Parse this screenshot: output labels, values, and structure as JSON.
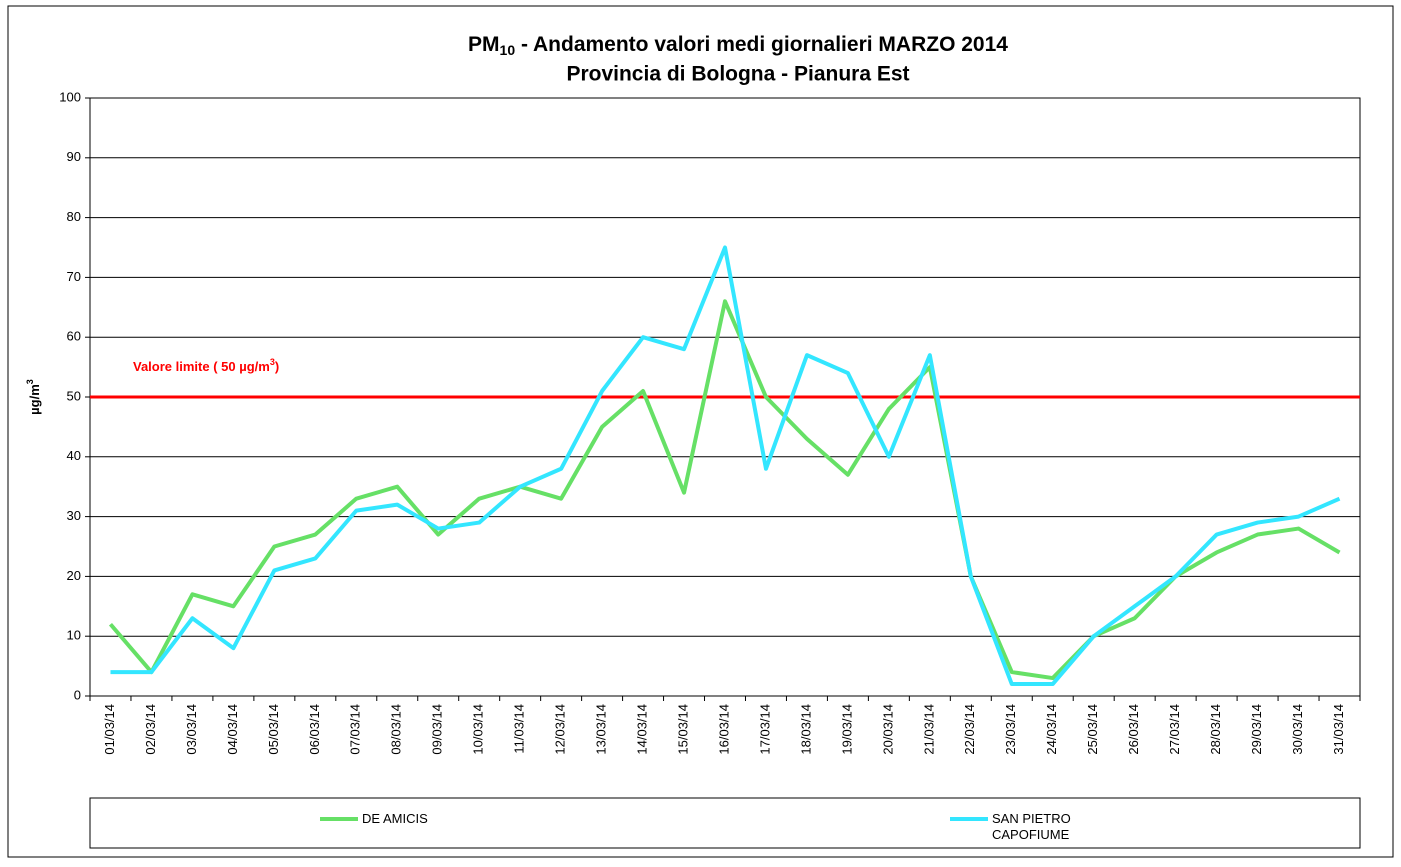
{
  "chart_data": {
    "type": "line",
    "title": [
      "PM",
      "10",
      " - Andamento valori medi giornalieri MARZO 2014"
    ],
    "subtitle": "Provincia di Bologna - Pianura Est",
    "y_label": [
      "µg/m",
      "3"
    ],
    "categories": [
      "01/03/14",
      "02/03/14",
      "03/03/14",
      "04/03/14",
      "05/03/14",
      "06/03/14",
      "07/03/14",
      "08/03/14",
      "09/03/14",
      "10/03/14",
      "11/03/14",
      "12/03/14",
      "13/03/14",
      "14/03/14",
      "15/03/14",
      "16/03/14",
      "17/03/14",
      "18/03/14",
      "19/03/14",
      "20/03/14",
      "21/03/14",
      "22/03/14",
      "23/03/14",
      "24/03/14",
      "25/03/14",
      "26/03/14",
      "27/03/14",
      "28/03/14",
      "29/03/14",
      "30/03/14",
      "31/03/14"
    ],
    "series": [
      {
        "name": "DE AMICIS",
        "color": "#66e066",
        "values": [
          12,
          4,
          17,
          15,
          25,
          27,
          33,
          35,
          27,
          33,
          35,
          33,
          45,
          51,
          34,
          66,
          50,
          43,
          37,
          48,
          55,
          20,
          4,
          3,
          10,
          13,
          20,
          24,
          27,
          28,
          24
        ]
      },
      {
        "name": "SAN PIETRO CAPOFIUME",
        "color": "#33e6ff",
        "values": [
          4,
          4,
          13,
          8,
          21,
          23,
          31,
          32,
          28,
          29,
          35,
          38,
          51,
          60,
          58,
          75,
          38,
          57,
          54,
          40,
          57,
          20,
          2,
          2,
          10,
          15,
          20,
          27,
          29,
          30,
          33
        ]
      }
    ],
    "reference_line": {
      "value": 50,
      "color": "#ff0000",
      "label": [
        "Valore limite  ( 50 µg/m",
        "3",
        ")"
      ]
    },
    "ylim": [
      0,
      100
    ],
    "yticks": [
      0,
      10,
      20,
      30,
      40,
      50,
      60,
      70,
      80,
      90,
      100
    ],
    "grid": true
  }
}
